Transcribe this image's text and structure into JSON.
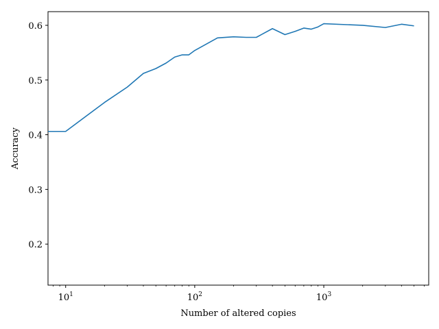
{
  "chart_data": {
    "type": "line",
    "title": "",
    "xlabel": "Number of altered copies",
    "ylabel": "Accuracy",
    "xscale": "log",
    "xlim": [
      7.3,
      6500
    ],
    "ylim": [
      0.125,
      0.625
    ],
    "grid": false,
    "x_ticks": [
      {
        "value": 10,
        "base": "10",
        "exp": "1"
      },
      {
        "value": 100,
        "base": "10",
        "exp": "2"
      },
      {
        "value": 1000,
        "base": "10",
        "exp": "3"
      }
    ],
    "y_ticks": [
      {
        "value": 0.2,
        "label": "0.2"
      },
      {
        "value": 0.3,
        "label": "0.3"
      },
      {
        "value": 0.4,
        "label": "0.4"
      },
      {
        "value": 0.5,
        "label": "0.5"
      },
      {
        "value": 0.6,
        "label": "0.6"
      }
    ],
    "series": [
      {
        "color": "#1f77b4",
        "x": [
          7.3,
          10,
          20,
          30,
          40,
          50,
          60,
          70,
          80,
          90,
          100,
          150,
          200,
          250,
          300,
          400,
          500,
          600,
          700,
          800,
          900,
          1000,
          2000,
          3000,
          4000,
          5000
        ],
        "y": [
          0.406,
          0.406,
          0.459,
          0.487,
          0.512,
          0.521,
          0.531,
          0.542,
          0.546,
          0.546,
          0.554,
          0.577,
          0.579,
          0.578,
          0.578,
          0.594,
          0.583,
          0.589,
          0.595,
          0.593,
          0.597,
          0.603,
          0.6,
          0.596,
          0.602,
          0.599
        ]
      }
    ]
  }
}
